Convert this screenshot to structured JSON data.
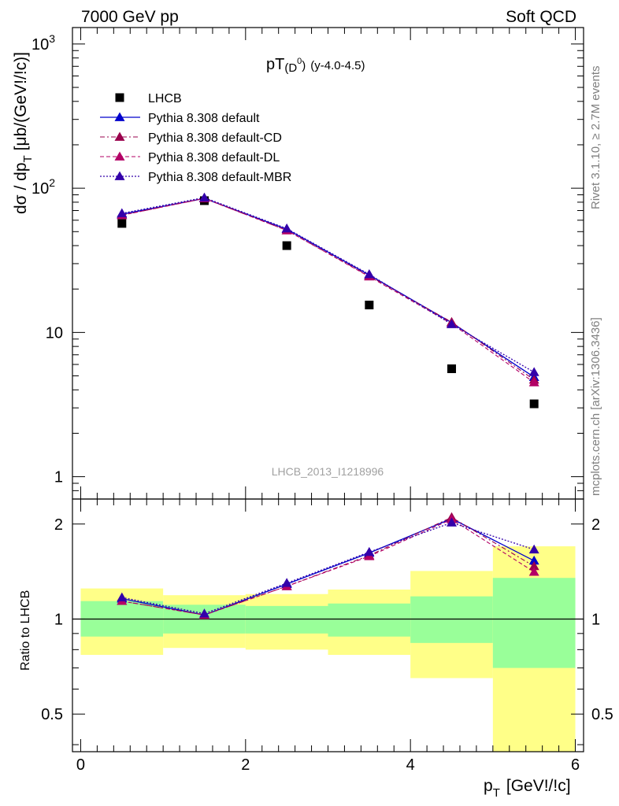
{
  "header": {
    "left": "7000 GeV pp",
    "right": "Soft QCD"
  },
  "side_labels": {
    "rivet": "Rivet 3.1.10, ≥ 2.7M events",
    "mcplots": "mcplots.cern.ch [arXiv:1306.3436]"
  },
  "colors": {
    "data": "#000000",
    "default": "#0000cc",
    "cd": "#99004c",
    "dl": "#b30066",
    "mbr": "#3300aa",
    "band_inner": "#99ff99",
    "band_outer": "#ffff88"
  },
  "chart_data": [
    {
      "type": "scatter",
      "panel": "main",
      "title_main": "pT",
      "title_paren": "(D",
      "title_sup": "0",
      "title_close": ")",
      "title_suffix": "(y-4.0-4.5)",
      "ylabel": "dσ / dp",
      "ylabel_sub": "T",
      "ylabel_units": "[μb/(GeV!/!c)]",
      "yscale": "log",
      "ylim": [
        0.7,
        1300
      ],
      "xlim": [
        -0.1,
        6.1
      ],
      "yticks": [
        {
          "v": 1,
          "base": "1"
        },
        {
          "v": 10,
          "base": "10"
        },
        {
          "v": 100,
          "base": "10",
          "exp": "2"
        },
        {
          "v": 1000,
          "base": "10",
          "exp": "3"
        }
      ],
      "watermark": "LHCB_2013_I1218996",
      "legend_position": "top-left",
      "x": [
        0.5,
        1.5,
        2.5,
        3.5,
        4.5,
        5.5
      ],
      "series": [
        {
          "name": "LHCB",
          "key": "data",
          "values": [
            57,
            82,
            40,
            15.5,
            5.6,
            3.2
          ]
        },
        {
          "name": "Pythia 8.308 default",
          "key": "default",
          "values": [
            66,
            85,
            52,
            25,
            11.7,
            4.9
          ]
        },
        {
          "name": "Pythia 8.308 default-CD",
          "key": "cd",
          "values": [
            65,
            85,
            51,
            24.6,
            11.8,
            4.7
          ]
        },
        {
          "name": "Pythia 8.308 default-DL",
          "key": "dl",
          "values": [
            65,
            85,
            51,
            24.4,
            11.5,
            4.5
          ]
        },
        {
          "name": "Pythia 8.308 default-MBR",
          "key": "mbr",
          "values": [
            67,
            86,
            52.5,
            25.3,
            11.4,
            5.3
          ]
        }
      ]
    },
    {
      "type": "scatter",
      "panel": "ratio",
      "ylabel": "Ratio to LHCB",
      "xlabel": "p",
      "xlabel_sub": "T",
      "xlabel_units": "[GeV!/!c]",
      "yscale": "log",
      "ylim": [
        0.38,
        2.4
      ],
      "xlim": [
        -0.1,
        6.1
      ],
      "yticks": [
        0.5,
        1,
        2
      ],
      "xticks": [
        0,
        2,
        4,
        6
      ],
      "bins": [
        [
          0,
          1
        ],
        [
          1,
          2
        ],
        [
          2,
          3
        ],
        [
          3,
          4
        ],
        [
          4,
          5
        ],
        [
          5,
          6
        ]
      ],
      "band_inner": [
        [
          0.88,
          1.14
        ],
        [
          0.9,
          1.11
        ],
        [
          0.9,
          1.1
        ],
        [
          0.88,
          1.12
        ],
        [
          0.84,
          1.18
        ],
        [
          0.7,
          1.35
        ]
      ],
      "band_outer": [
        [
          0.77,
          1.25
        ],
        [
          0.81,
          1.19
        ],
        [
          0.8,
          1.2
        ],
        [
          0.77,
          1.24
        ],
        [
          0.65,
          1.42
        ],
        [
          0.38,
          1.7
        ]
      ],
      "x": [
        0.5,
        1.5,
        2.5,
        3.5,
        4.5,
        5.5
      ],
      "series": [
        {
          "name": "Pythia 8.308 default",
          "key": "default",
          "values": [
            1.16,
            1.03,
            1.29,
            1.62,
            2.08,
            1.53
          ]
        },
        {
          "name": "Pythia 8.308 default-CD",
          "key": "cd",
          "values": [
            1.14,
            1.03,
            1.27,
            1.59,
            2.1,
            1.47
          ]
        },
        {
          "name": "Pythia 8.308 default-DL",
          "key": "dl",
          "values": [
            1.14,
            1.03,
            1.27,
            1.58,
            2.07,
            1.41
          ]
        },
        {
          "name": "Pythia 8.308 default-MBR",
          "key": "mbr",
          "values": [
            1.17,
            1.04,
            1.3,
            1.63,
            2.02,
            1.66
          ]
        }
      ]
    }
  ]
}
